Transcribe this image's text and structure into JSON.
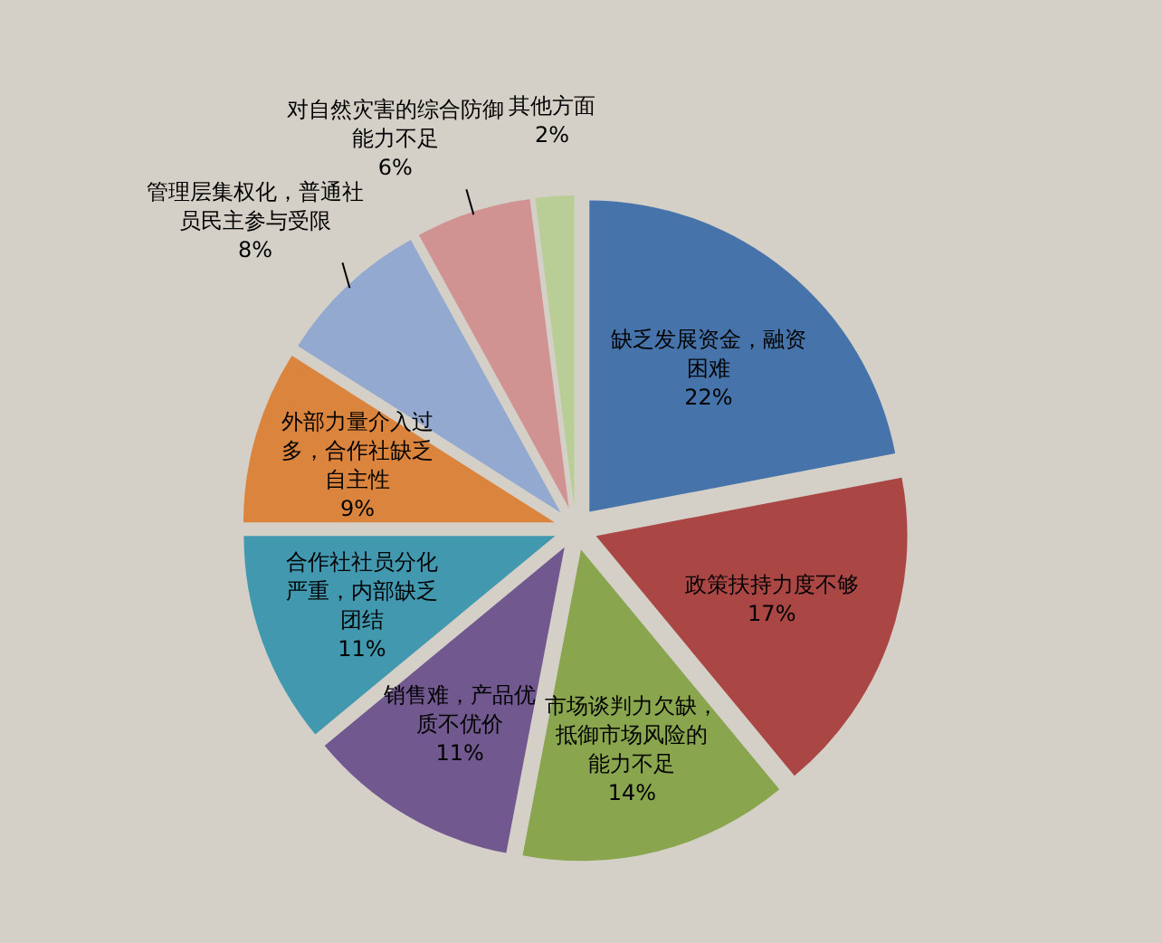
{
  "chart_data": {
    "type": "pie",
    "categories": [
      "缺乏发展资金，融资困难",
      "政策扶持力度不够",
      "市场谈判力欠缺，抵御市场风险的能力不足",
      "销售难，产品优质不优价",
      "合作社社员分化严重，内部缺乏团结",
      "外部力量介入过多，合作社缺乏自主性",
      "管理层集权化，普通社员民主参与受限",
      "对自然灾害的综合防御能力不足",
      "其他方面"
    ],
    "values": [
      22,
      17,
      14,
      11,
      11,
      9,
      8,
      6,
      2
    ],
    "value_labels": [
      "22%",
      "17%",
      "14%",
      "11%",
      "11%",
      "9%",
      "8%",
      "6%",
      "2%"
    ],
    "colors": [
      "#4674aa",
      "#aa4744",
      "#89a54e",
      "#71588f",
      "#4198af",
      "#db843d",
      "#93a9cf",
      "#d19392",
      "#b9cd96"
    ]
  }
}
